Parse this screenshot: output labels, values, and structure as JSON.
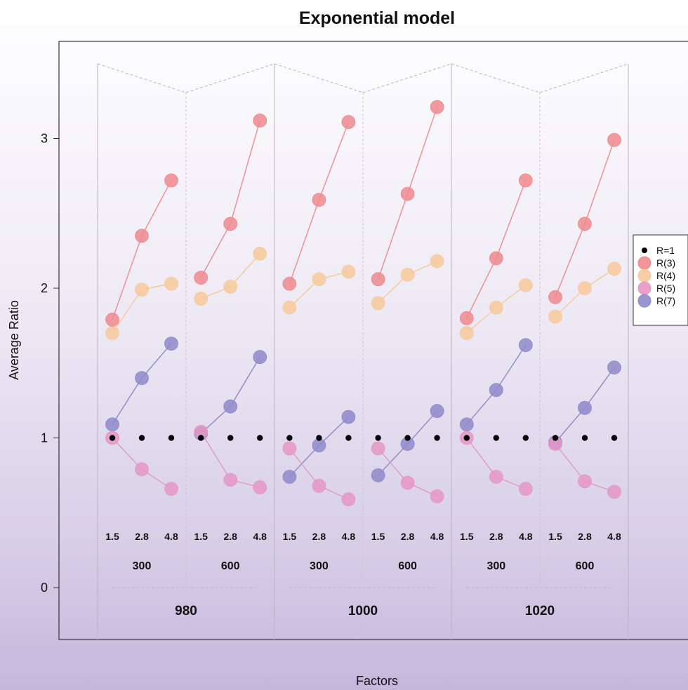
{
  "chart_data": {
    "type": "scatter",
    "title": "Exponential model",
    "xlabel": "Factors",
    "ylabel": "Average Ratio",
    "ylim": [
      -0.33,
      3.65
    ],
    "yticks": [
      0,
      1,
      2,
      3
    ],
    "factor_levels": [
      "1.5",
      "2.8",
      "4.8"
    ],
    "sub_groups": [
      "300",
      "600"
    ],
    "super_groups": [
      "980",
      "1000",
      "1020"
    ],
    "grid": false,
    "legend_position": "right",
    "legend": [
      {
        "name": "R=1",
        "color": "#000000"
      },
      {
        "name": "R(3)",
        "color": "#ef8a8e"
      },
      {
        "name": "R(4)",
        "color": "#f7c99a"
      },
      {
        "name": "R(5)",
        "color": "#e597c4"
      },
      {
        "name": "R(7)",
        "color": "#8e8ac9"
      }
    ],
    "panels": [
      {
        "super": "980",
        "sub": "300",
        "R1": [
          1,
          1,
          1
        ],
        "R3": [
          1.79,
          2.35,
          2.72
        ],
        "R4": [
          1.7,
          1.99,
          2.03
        ],
        "R5": [
          1.0,
          0.79,
          0.66
        ],
        "R7": [
          1.09,
          1.4,
          1.63
        ]
      },
      {
        "super": "980",
        "sub": "600",
        "R1": [
          1,
          1,
          1
        ],
        "R3": [
          2.07,
          2.43,
          3.12
        ],
        "R4": [
          1.93,
          2.01,
          2.23
        ],
        "R5": [
          1.04,
          0.72,
          0.67
        ],
        "R7": [
          1.03,
          1.21,
          1.54
        ]
      },
      {
        "super": "1000",
        "sub": "300",
        "R1": [
          1,
          1,
          1
        ],
        "R3": [
          2.03,
          2.59,
          3.11
        ],
        "R4": [
          1.87,
          2.06,
          2.11
        ],
        "R5": [
          0.93,
          0.68,
          0.59
        ],
        "R7": [
          0.74,
          0.95,
          1.14
        ]
      },
      {
        "super": "1000",
        "sub": "600",
        "R1": [
          1,
          1,
          1
        ],
        "R3": [
          2.06,
          2.63,
          3.21
        ],
        "R4": [
          1.9,
          2.09,
          2.18
        ],
        "R5": [
          0.93,
          0.7,
          0.61
        ],
        "R7": [
          0.75,
          0.96,
          1.18
        ]
      },
      {
        "super": "1020",
        "sub": "300",
        "R1": [
          1,
          1,
          1
        ],
        "R3": [
          1.8,
          2.2,
          2.72
        ],
        "R4": [
          1.7,
          1.87,
          2.02
        ],
        "R5": [
          1.0,
          0.74,
          0.66
        ],
        "R7": [
          1.09,
          1.32,
          1.62
        ]
      },
      {
        "super": "1020",
        "sub": "600",
        "R1": [
          1,
          1,
          1
        ],
        "R3": [
          1.94,
          2.43,
          2.99
        ],
        "R4": [
          1.81,
          2.0,
          2.13
        ],
        "R5": [
          0.96,
          0.71,
          0.64
        ],
        "R7": [
          0.97,
          1.2,
          1.47
        ]
      }
    ]
  }
}
